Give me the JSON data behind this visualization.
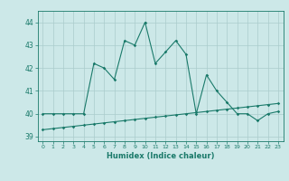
{
  "x": [
    0,
    1,
    2,
    3,
    4,
    5,
    6,
    7,
    8,
    9,
    10,
    11,
    12,
    13,
    14,
    15,
    16,
    17,
    18,
    19,
    20,
    21,
    22,
    23
  ],
  "humidex": [
    40.0,
    40.0,
    40.0,
    40.0,
    40.0,
    42.2,
    42.0,
    41.5,
    43.2,
    43.0,
    44.0,
    42.2,
    42.7,
    43.2,
    42.6,
    40.0,
    41.7,
    41.0,
    40.5,
    40.0,
    40.0,
    39.7,
    40.0,
    40.1
  ],
  "baseline": [
    39.3,
    39.35,
    39.4,
    39.45,
    39.5,
    39.55,
    39.6,
    39.65,
    39.7,
    39.75,
    39.8,
    39.85,
    39.9,
    39.95,
    40.0,
    40.05,
    40.1,
    40.15,
    40.2,
    40.25,
    40.3,
    40.35,
    40.4,
    40.45
  ],
  "line_color": "#1a7a6a",
  "bg_color": "#cce8e8",
  "grid_color": "#aacccc",
  "xlabel": "Humidex (Indice chaleur)",
  "ylim": [
    38.8,
    44.5
  ],
  "xlim": [
    -0.5,
    23.5
  ],
  "yticks": [
    39,
    40,
    41,
    42,
    43,
    44
  ],
  "xticks": [
    0,
    1,
    2,
    3,
    4,
    5,
    6,
    7,
    8,
    9,
    10,
    11,
    12,
    13,
    14,
    15,
    16,
    17,
    18,
    19,
    20,
    21,
    22,
    23
  ]
}
